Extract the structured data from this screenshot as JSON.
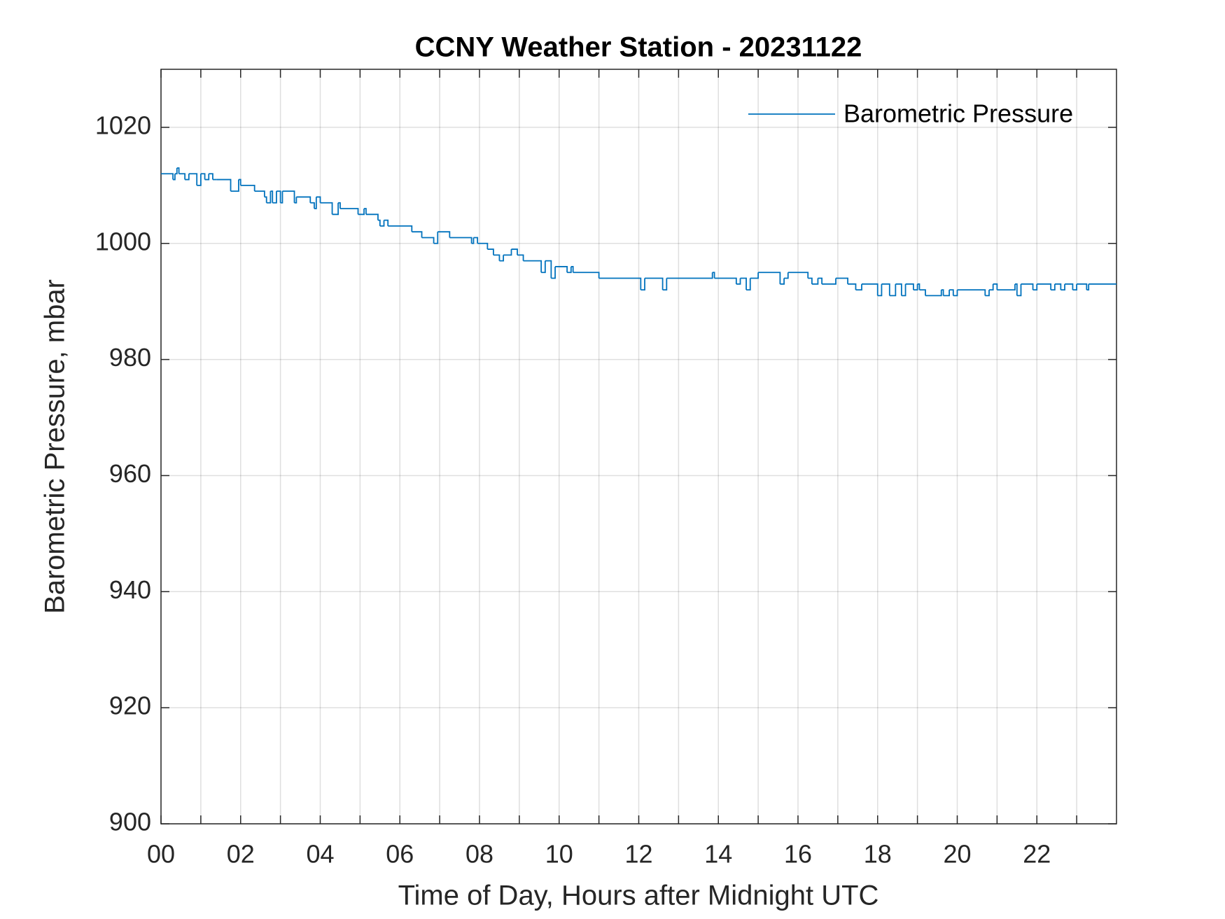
{
  "chart_data": {
    "type": "line",
    "title": "CCNY Weather Station - 20231122",
    "x_label": "Time of Day, Hours after Midnight UTC",
    "y_label": "Barometric Pressure, mbar",
    "drawstyle": "steps-post",
    "legend": "upper right",
    "grid": true,
    "xlim": [
      0,
      24
    ],
    "ylim": [
      900,
      1030
    ],
    "xticks": [
      {
        "value": 0,
        "label": "00"
      },
      {
        "value": 2,
        "label": "02"
      },
      {
        "value": 4,
        "label": "04"
      },
      {
        "value": 6,
        "label": "06"
      },
      {
        "value": 8,
        "label": "08"
      },
      10,
      12,
      14,
      16,
      18,
      20,
      22
    ],
    "xminorticks": [
      1,
      3,
      5,
      7,
      9,
      11,
      13,
      15,
      17,
      19,
      21,
      23
    ],
    "yticks": [
      900,
      920,
      940,
      960,
      980,
      1000,
      1020
    ],
    "series": [
      {
        "name": "Barometric Pressure",
        "color": "#0072bd",
        "x": [
          0,
          0.3,
          0.35,
          0.4,
          0.45,
          0.6,
          0.7,
          0.9,
          1.0,
          1.1,
          1.2,
          1.3,
          1.4,
          1.75,
          1.95,
          2.0,
          2.35,
          2.6,
          2.65,
          2.75,
          2.8,
          2.9,
          3.0,
          3.05,
          3.35,
          3.4,
          3.75,
          3.85,
          3.9,
          4.0,
          4.3,
          4.45,
          4.5,
          4.95,
          5.1,
          5.15,
          5.45,
          5.5,
          5.6,
          5.7,
          6.3,
          6.55,
          6.85,
          6.95,
          7.25,
          7.8,
          7.85,
          7.95,
          8.2,
          8.35,
          8.5,
          8.6,
          8.8,
          8.95,
          9.1,
          9.55,
          9.65,
          9.8,
          9.9,
          10.2,
          10.3,
          10.35,
          11.0,
          12.05,
          12.15,
          12.6,
          12.7,
          13.85,
          13.9,
          14.45,
          14.55,
          14.7,
          14.8,
          15.0,
          15.55,
          15.65,
          15.75,
          16.25,
          16.35,
          16.5,
          16.6,
          16.95,
          17.25,
          17.45,
          17.6,
          18.0,
          18.1,
          18.3,
          18.45,
          18.6,
          18.7,
          18.9,
          19.0,
          19.05,
          19.2,
          19.6,
          19.65,
          19.8,
          19.9,
          20.0,
          20.7,
          20.8,
          20.9,
          21.0,
          21.45,
          21.5,
          21.6,
          21.9,
          22.0,
          22.35,
          22.45,
          22.6,
          22.7,
          22.9,
          23.0,
          23.25,
          23.3,
          24
        ],
        "values": [
          1012,
          1011,
          1012,
          1013,
          1012,
          1011,
          1012,
          1010,
          1012,
          1011,
          1012,
          1011,
          1011,
          1009,
          1011,
          1010,
          1009,
          1008,
          1007,
          1009,
          1007,
          1009,
          1007,
          1009,
          1007,
          1008,
          1007,
          1006,
          1008,
          1007,
          1005,
          1007,
          1006,
          1005,
          1006,
          1005,
          1004,
          1003,
          1004,
          1003,
          1002,
          1001,
          1000,
          1002,
          1001,
          1000,
          1001,
          1000,
          999,
          998,
          997,
          998,
          999,
          998,
          997,
          995,
          997,
          994,
          996,
          995,
          996,
          995,
          994,
          992,
          994,
          992,
          994,
          995,
          994,
          993,
          994,
          992,
          994,
          995,
          993,
          994,
          995,
          994,
          993,
          994,
          993,
          994,
          993,
          992,
          993,
          991,
          993,
          991,
          993,
          991,
          993,
          992,
          993,
          992,
          991,
          992,
          991,
          992,
          991,
          992,
          991,
          992,
          993,
          992,
          993,
          991,
          993,
          992,
          993,
          992,
          993,
          992,
          993,
          992,
          993,
          992,
          993,
          993
        ]
      }
    ]
  }
}
